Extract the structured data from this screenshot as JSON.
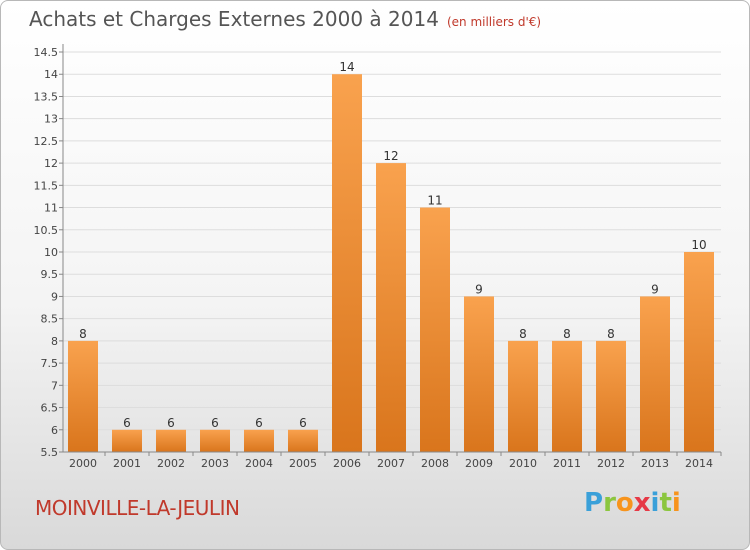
{
  "title": "Achats et Charges Externes 2000 à 2014",
  "subtitle": "(en milliers d'€)",
  "commune": "MOINVILLE-LA-JEULIN",
  "logo": {
    "letters": [
      "P",
      "r",
      "o",
      "x",
      "i",
      "t",
      "i"
    ],
    "colors": [
      "#3aa0d9",
      "#8cc63f",
      "#f7941d",
      "#e63946",
      "#3aa0d9",
      "#8cc63f",
      "#f7941d"
    ]
  },
  "colors": {
    "bar_light": "#f9a24e",
    "bar_dark": "#d9751c",
    "grid": "#dddddd",
    "title": "#555555",
    "accent": "#c0392b"
  },
  "chart_data": {
    "type": "bar",
    "categories": [
      "2000",
      "2001",
      "2002",
      "2003",
      "2004",
      "2005",
      "2006",
      "2007",
      "2008",
      "2009",
      "2010",
      "2011",
      "2012",
      "2013",
      "2014"
    ],
    "values": [
      8,
      6,
      6,
      6,
      6,
      6,
      14,
      12,
      11,
      9,
      8,
      8,
      8,
      9,
      10
    ],
    "value_labels": [
      "8",
      "6",
      "6",
      "6",
      "6",
      "6",
      "14",
      "12",
      "11",
      "9",
      "8",
      "8",
      "8",
      "9",
      "10"
    ],
    "yticks": [
      "5.5",
      "6",
      "6.5",
      "7",
      "7.5",
      "8",
      "8.5",
      "9",
      "9.5",
      "10",
      "10.5",
      "11",
      "11.5",
      "12",
      "12.5",
      "13",
      "13.5",
      "14",
      "14.5"
    ],
    "ylim": [
      5.5,
      14.5
    ],
    "grid": true,
    "legend": "none",
    "title": "Achats et Charges Externes 2000 à 2014",
    "xlabel": "",
    "ylabel": ""
  }
}
